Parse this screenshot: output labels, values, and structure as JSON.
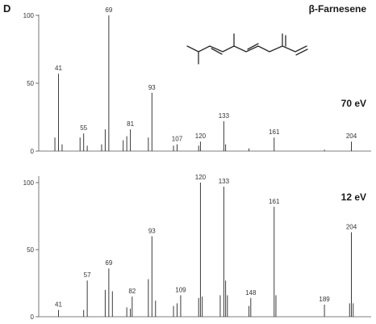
{
  "figure": {
    "panel_letter": "D",
    "compound": "β-Farnesene"
  },
  "chart_data": [
    {
      "type": "bar",
      "energy_label": "70 eV",
      "ylim": [
        0,
        100
      ],
      "xlim": [
        30,
        215
      ],
      "yticks": [
        "0",
        "50",
        "100"
      ],
      "x": [
        39,
        41,
        43,
        53,
        55,
        57,
        65,
        67,
        69,
        77,
        79,
        81,
        91,
        93,
        105,
        107,
        119,
        120,
        133,
        134,
        147,
        161,
        189,
        204
      ],
      "values": [
        10,
        57,
        5,
        10,
        13,
        4,
        5,
        16,
        100,
        8,
        11,
        16,
        10,
        43,
        4,
        5,
        4,
        7,
        22,
        5,
        2,
        10,
        1,
        7
      ],
      "labels": [
        {
          "x": 41,
          "y": 57,
          "text": "41"
        },
        {
          "x": 55,
          "y": 13,
          "text": "55"
        },
        {
          "x": 69,
          "y": 100,
          "text": "69"
        },
        {
          "x": 81,
          "y": 16,
          "text": "81"
        },
        {
          "x": 93,
          "y": 43,
          "text": "93"
        },
        {
          "x": 107,
          "y": 5,
          "text": "107"
        },
        {
          "x": 120,
          "y": 7,
          "text": "120"
        },
        {
          "x": 133,
          "y": 22,
          "text": "133"
        },
        {
          "x": 161,
          "y": 10,
          "text": "161"
        },
        {
          "x": 204,
          "y": 7,
          "text": "204"
        }
      ]
    },
    {
      "type": "bar",
      "energy_label": "12 eV",
      "ylim": [
        0,
        100
      ],
      "xlim": [
        30,
        215
      ],
      "yticks": [
        "0",
        "50",
        "100"
      ],
      "x": [
        41,
        55,
        57,
        67,
        69,
        71,
        79,
        81,
        82,
        91,
        93,
        95,
        105,
        107,
        109,
        119,
        120,
        121,
        131,
        133,
        134,
        135,
        147,
        148,
        161,
        162,
        189,
        203,
        204,
        205
      ],
      "values": [
        5,
        5,
        27,
        20,
        36,
        19,
        7,
        6,
        15,
        28,
        60,
        12,
        8,
        10,
        16,
        14,
        100,
        15,
        16,
        97,
        27,
        16,
        8,
        14,
        82,
        16,
        9,
        10,
        63,
        10
      ],
      "labels": [
        {
          "x": 41,
          "y": 5,
          "text": "41"
        },
        {
          "x": 57,
          "y": 27,
          "text": "57"
        },
        {
          "x": 69,
          "y": 36,
          "text": "69"
        },
        {
          "x": 82,
          "y": 15,
          "text": "82"
        },
        {
          "x": 93,
          "y": 60,
          "text": "93"
        },
        {
          "x": 109,
          "y": 16,
          "text": "109"
        },
        {
          "x": 120,
          "y": 100,
          "text": "120"
        },
        {
          "x": 133,
          "y": 97,
          "text": "133"
        },
        {
          "x": 148,
          "y": 14,
          "text": "148"
        },
        {
          "x": 161,
          "y": 82,
          "text": "161"
        },
        {
          "x": 189,
          "y": 9,
          "text": "189"
        },
        {
          "x": 204,
          "y": 63,
          "text": "204"
        }
      ]
    }
  ]
}
